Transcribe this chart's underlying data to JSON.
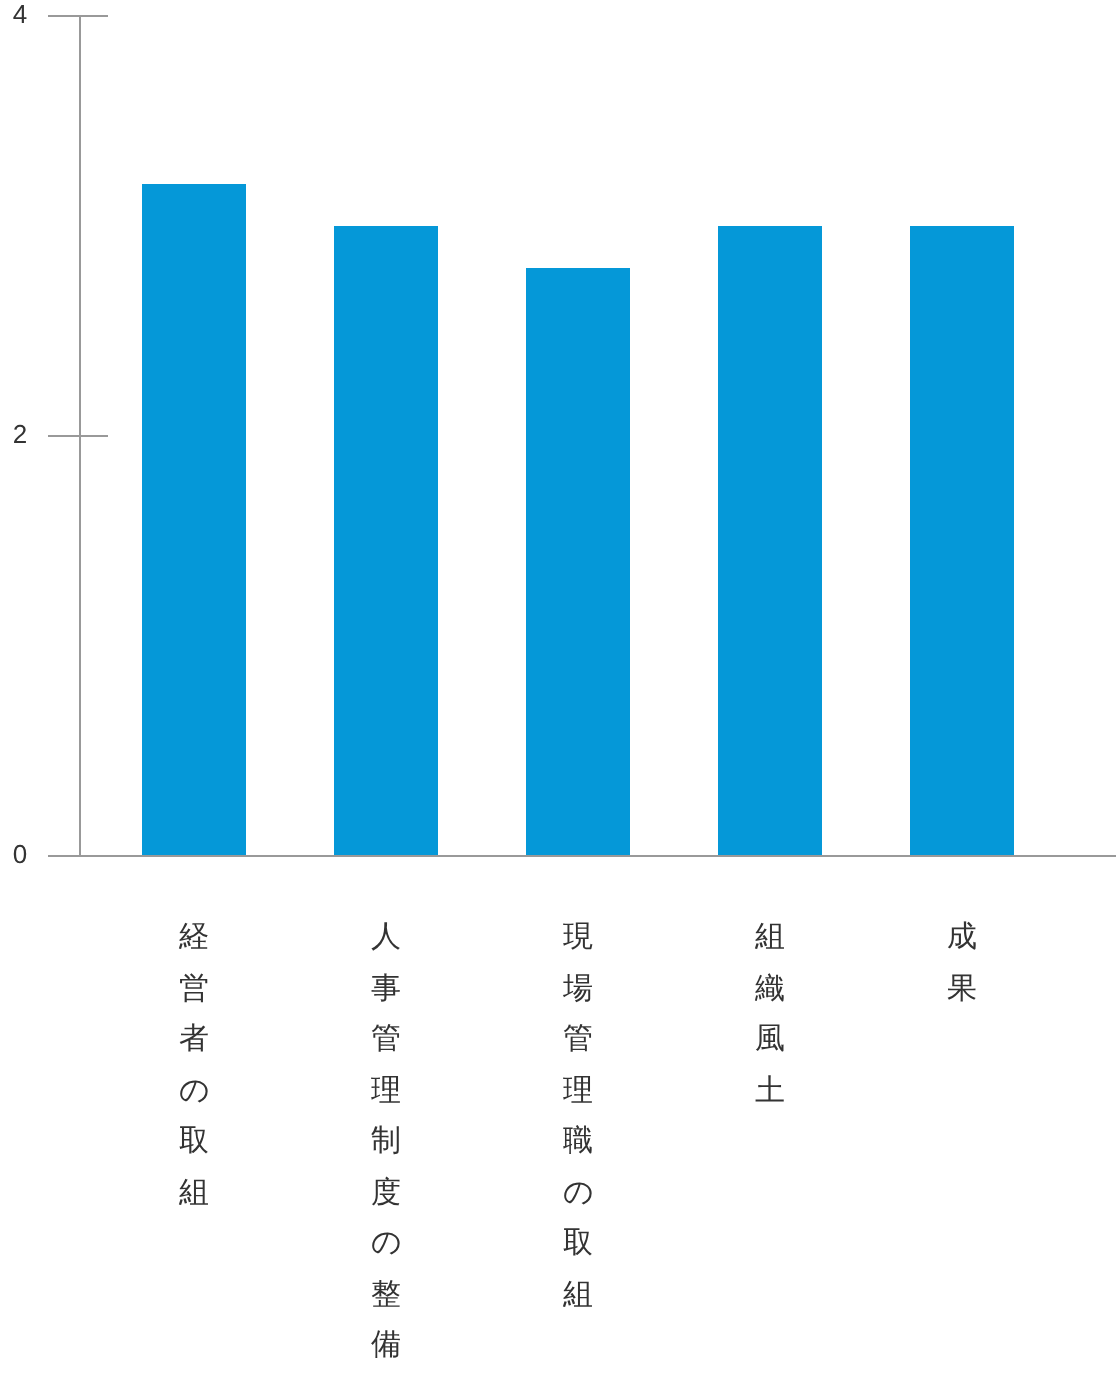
{
  "chart_data": {
    "type": "bar",
    "categories": [
      "経営者の取組",
      "人事管理制度の整備",
      "現場管理職の取組",
      "組織風土",
      "成果"
    ],
    "values": [
      3.2,
      3.0,
      2.8,
      3.0,
      3.0
    ],
    "color": "#0598d8",
    "ylim": [
      0,
      4
    ],
    "yticks": [
      0,
      2,
      4
    ],
    "grid": false
  }
}
